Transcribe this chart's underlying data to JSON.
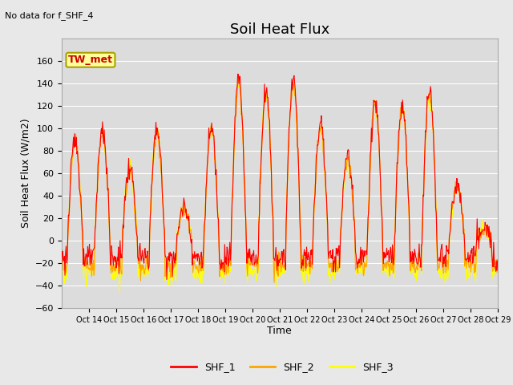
{
  "title": "Soil Heat Flux",
  "subtitle": "No data for f_SHF_4",
  "ylabel": "Soil Heat Flux (W/m2)",
  "xlabel": "Time",
  "legend_labels": [
    "SHF_1",
    "SHF_2",
    "SHF_3"
  ],
  "legend_colors": [
    "#ff0000",
    "#ffa500",
    "#ffff00"
  ],
  "ylim": [
    -60,
    180
  ],
  "yticks": [
    -60,
    -40,
    -20,
    0,
    20,
    40,
    60,
    80,
    100,
    120,
    140,
    160
  ],
  "background_color": "#e8e8e8",
  "plot_bg_color": "#dcdcdc",
  "grid_color": "#ffffff",
  "annotation_box_text": "TW_met",
  "annotation_box_color": "#ffff99",
  "annotation_box_edgecolor": "#aaa000",
  "title_fontsize": 13,
  "label_fontsize": 9,
  "tick_fontsize": 8,
  "xtick_labels": [
    "Oct 14",
    "Oct 15",
    "Oct 16",
    "Oct 17",
    "Oct 18",
    "Oct 19",
    "Oct 20",
    "Oct 21",
    "Oct 22",
    "Oct 23",
    "Oct 24",
    "Oct 25",
    "Oct 26",
    "Oct 27",
    "Oct 28",
    "Oct 29"
  ],
  "n_days": 16,
  "n_per_day": 48,
  "day_amplitudes_shf1": [
    90,
    100,
    65,
    100,
    30,
    100,
    145,
    135,
    145,
    105,
    75,
    125,
    120,
    135,
    50,
    10
  ],
  "day_amplitudes_shf23": [
    90,
    95,
    62,
    98,
    30,
    98,
    140,
    130,
    140,
    100,
    72,
    122,
    118,
    130,
    48,
    10
  ]
}
